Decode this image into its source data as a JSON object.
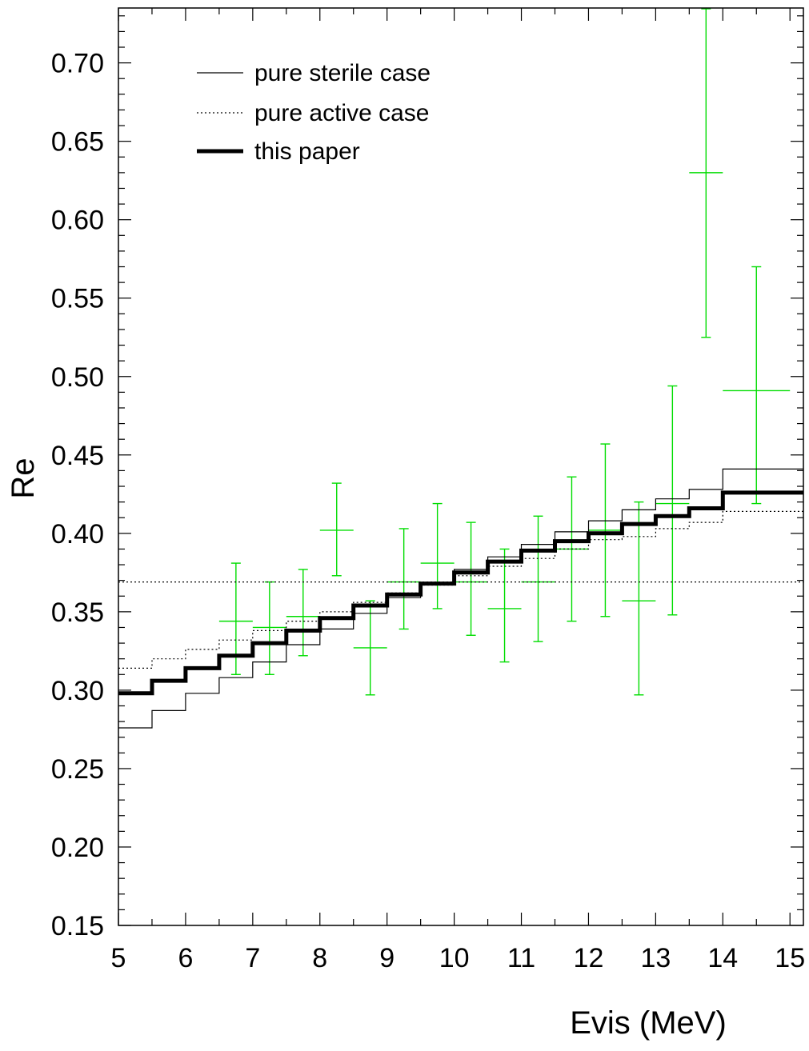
{
  "chart_data": {
    "type": "line",
    "xlabel": "Evis (MeV)",
    "ylabel": "Re",
    "xlim": [
      5,
      15.2
    ],
    "ylim": [
      0.15,
      0.735
    ],
    "x_ticks": [
      "5",
      "6",
      "7",
      "8",
      "9",
      "10",
      "11",
      "12",
      "13",
      "14",
      "15"
    ],
    "y_ticks": [
      "0.15",
      "0.20",
      "0.25",
      "0.30",
      "0.35",
      "0.40",
      "0.45",
      "0.50",
      "0.55",
      "0.60",
      "0.65",
      "0.70"
    ],
    "grid": false,
    "legend": {
      "position": "top-left",
      "entries": [
        {
          "label": "pure sterile case",
          "style": "thin-solid"
        },
        {
          "label": "pure active case",
          "style": "dotted"
        },
        {
          "label": "this paper",
          "style": "thick-solid"
        }
      ]
    },
    "bin_edges": [
      5,
      5.5,
      6,
      6.5,
      7,
      7.5,
      8,
      8.5,
      9,
      9.5,
      10,
      10.5,
      11,
      11.5,
      12,
      12.5,
      13,
      13.5,
      14,
      15.2
    ],
    "series": [
      {
        "name": "pure sterile case",
        "style": "thin-solid",
        "values": [
          0.276,
          0.287,
          0.298,
          0.308,
          0.318,
          0.329,
          0.339,
          0.349,
          0.359,
          0.368,
          0.377,
          0.385,
          0.393,
          0.401,
          0.408,
          0.415,
          0.422,
          0.428,
          0.441
        ]
      },
      {
        "name": "pure active case",
        "style": "dotted",
        "values": [
          0.314,
          0.32,
          0.326,
          0.332,
          0.338,
          0.344,
          0.35,
          0.356,
          0.362,
          0.367,
          0.373,
          0.379,
          0.384,
          0.39,
          0.396,
          0.398,
          0.403,
          0.407,
          0.414
        ]
      },
      {
        "name": "this paper",
        "style": "thick-solid",
        "values": [
          0.298,
          0.306,
          0.314,
          0.322,
          0.33,
          0.338,
          0.346,
          0.354,
          0.361,
          0.368,
          0.375,
          0.382,
          0.389,
          0.395,
          0.4,
          0.406,
          0.411,
          0.416,
          0.426
        ]
      }
    ],
    "reference_line": {
      "y": 0.369,
      "style": "dotted",
      "x_range": [
        5,
        15.2
      ]
    },
    "data_points": {
      "color": "#00dd00",
      "points": [
        {
          "x": 6.75,
          "xerr": 0.25,
          "y": 0.344,
          "ylo": 0.31,
          "yhi": 0.381
        },
        {
          "x": 7.25,
          "xerr": 0.25,
          "y": 0.34,
          "ylo": 0.31,
          "yhi": 0.369
        },
        {
          "x": 7.75,
          "xerr": 0.25,
          "y": 0.347,
          "ylo": 0.322,
          "yhi": 0.377
        },
        {
          "x": 8.25,
          "xerr": 0.25,
          "y": 0.402,
          "ylo": 0.373,
          "yhi": 0.432
        },
        {
          "x": 8.75,
          "xerr": 0.25,
          "y": 0.327,
          "ylo": 0.297,
          "yhi": 0.357
        },
        {
          "x": 9.25,
          "xerr": 0.25,
          "y": 0.369,
          "ylo": 0.339,
          "yhi": 0.403
        },
        {
          "x": 9.75,
          "xerr": 0.25,
          "y": 0.381,
          "ylo": 0.352,
          "yhi": 0.419
        },
        {
          "x": 10.25,
          "xerr": 0.25,
          "y": 0.369,
          "ylo": 0.335,
          "yhi": 0.407
        },
        {
          "x": 10.75,
          "xerr": 0.25,
          "y": 0.352,
          "ylo": 0.318,
          "yhi": 0.39
        },
        {
          "x": 11.25,
          "xerr": 0.25,
          "y": 0.369,
          "ylo": 0.331,
          "yhi": 0.411
        },
        {
          "x": 11.75,
          "xerr": 0.25,
          "y": 0.39,
          "ylo": 0.344,
          "yhi": 0.436
        },
        {
          "x": 12.25,
          "xerr": 0.25,
          "y": 0.402,
          "ylo": 0.347,
          "yhi": 0.457
        },
        {
          "x": 12.75,
          "xerr": 0.25,
          "y": 0.357,
          "ylo": 0.297,
          "yhi": 0.42
        },
        {
          "x": 13.25,
          "xerr": 0.25,
          "y": 0.419,
          "ylo": 0.348,
          "yhi": 0.494
        },
        {
          "x": 13.75,
          "xerr": 0.25,
          "y": 0.63,
          "ylo": 0.525,
          "yhi": 0.735
        },
        {
          "x": 14.5,
          "xerr": 0.5,
          "y": 0.491,
          "ylo": 0.419,
          "yhi": 0.57
        }
      ]
    }
  }
}
